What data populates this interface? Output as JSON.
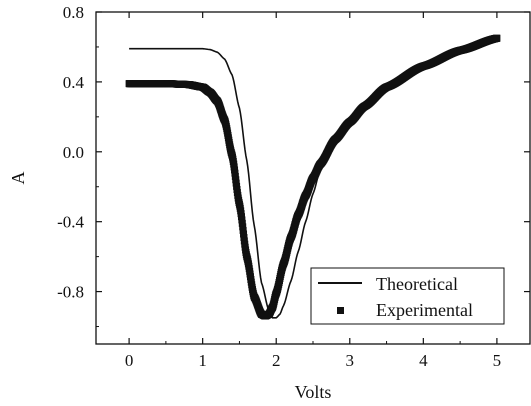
{
  "chart_data": {
    "type": "line",
    "xlabel": "Volts",
    "ylabel": "A",
    "xlim": [
      -0.45,
      5.45
    ],
    "ylim": [
      -1.1,
      0.8
    ],
    "x_ticks": [
      0,
      1,
      2,
      3,
      4,
      5
    ],
    "y_ticks": [
      0.8,
      0.4,
      0.0,
      -0.4,
      -0.8
    ],
    "y_tick_labels": [
      "0.8",
      "0.4",
      "0.0",
      "-0.4",
      "-0.8"
    ],
    "legend_position": "bottom-right",
    "series": [
      {
        "name": "Theoretical",
        "style": "line",
        "color": "#111111",
        "x": [
          0.0,
          0.5,
          1.0,
          1.1,
          1.2,
          1.3,
          1.4,
          1.5,
          1.6,
          1.7,
          1.8,
          1.9,
          1.95,
          2.0,
          2.05,
          2.1,
          2.2,
          2.3,
          2.4,
          2.5,
          2.6,
          2.8,
          3.0,
          3.2,
          3.5,
          4.0,
          4.5,
          5.0
        ],
        "y": [
          0.59,
          0.59,
          0.59,
          0.585,
          0.57,
          0.53,
          0.44,
          0.25,
          -0.05,
          -0.42,
          -0.75,
          -0.91,
          -0.95,
          -0.95,
          -0.93,
          -0.88,
          -0.74,
          -0.57,
          -0.4,
          -0.24,
          -0.1,
          0.07,
          0.19,
          0.28,
          0.39,
          0.5,
          0.58,
          0.65
        ]
      },
      {
        "name": "Experimental",
        "style": "markers",
        "color": "#111111",
        "x": [
          0.0,
          0.5,
          0.8,
          1.0,
          1.1,
          1.2,
          1.3,
          1.4,
          1.5,
          1.6,
          1.7,
          1.8,
          1.85,
          1.9,
          1.95,
          2.0,
          2.1,
          2.2,
          2.3,
          2.4,
          2.5,
          2.6,
          2.8,
          3.0,
          3.2,
          3.5,
          4.0,
          4.5,
          5.0
        ],
        "y": [
          0.39,
          0.39,
          0.385,
          0.37,
          0.34,
          0.29,
          0.18,
          -0.02,
          -0.3,
          -0.6,
          -0.83,
          -0.93,
          -0.94,
          -0.93,
          -0.89,
          -0.81,
          -0.64,
          -0.49,
          -0.36,
          -0.25,
          -0.15,
          -0.07,
          0.07,
          0.17,
          0.26,
          0.37,
          0.49,
          0.58,
          0.65
        ]
      }
    ]
  }
}
